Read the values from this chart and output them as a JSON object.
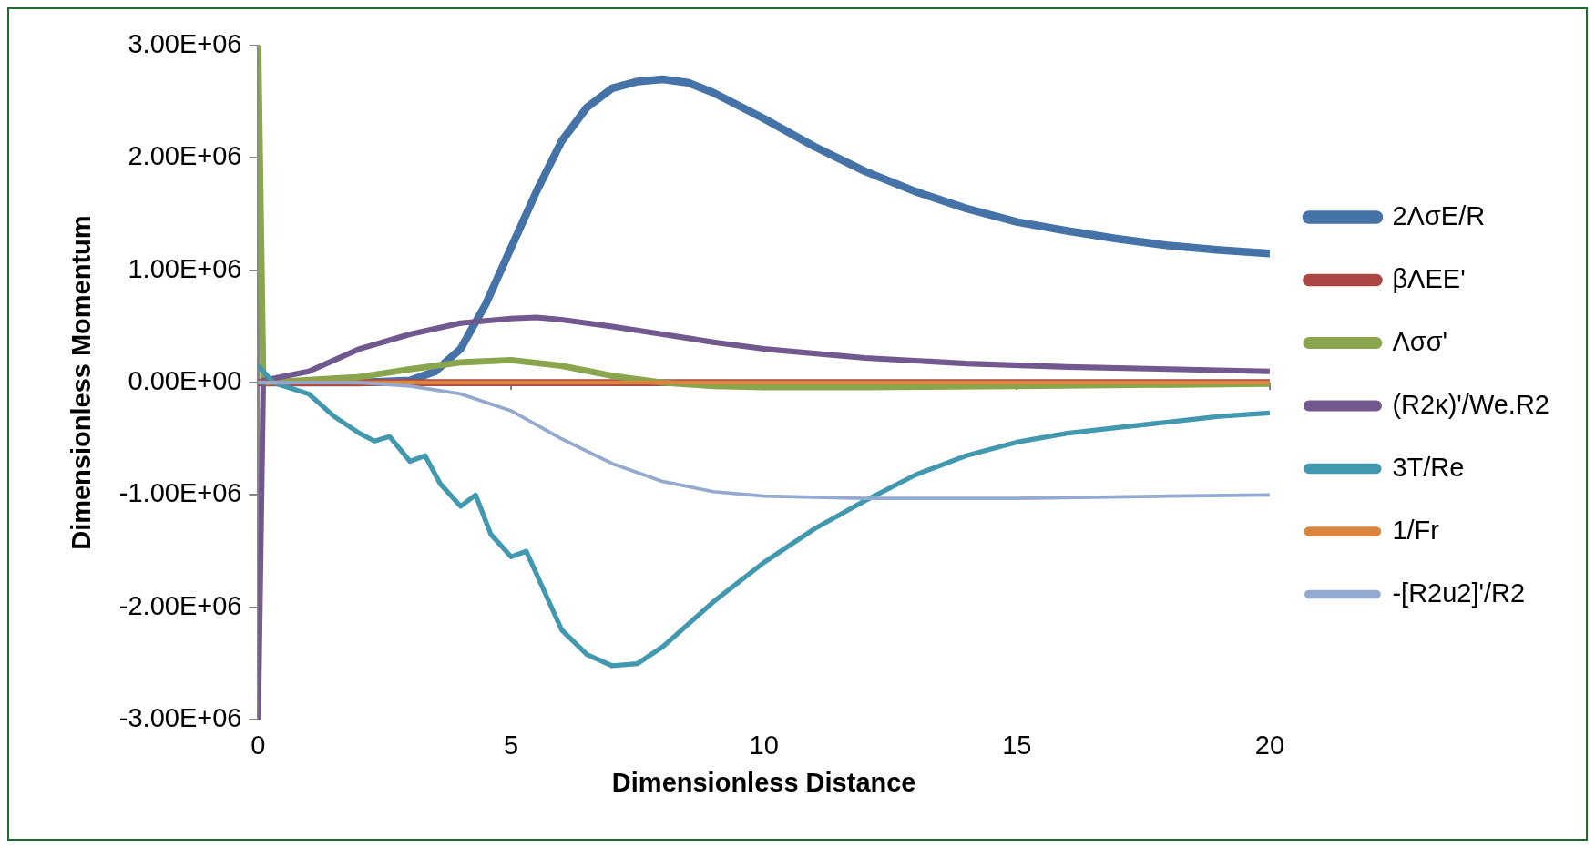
{
  "chart_data": {
    "type": "line",
    "xlabel": "Dimensionless Distance",
    "ylabel": "Dimensionless Momentum",
    "xlim": [
      0,
      20
    ],
    "xticks": [
      0,
      5,
      10,
      15,
      20
    ],
    "ylim": [
      -3000000,
      3000000
    ],
    "yticks": [
      {
        "value": -3000000,
        "label": "-3.00E+06"
      },
      {
        "value": -2000000,
        "label": "-2.00E+06"
      },
      {
        "value": -1000000,
        "label": "-1.00E+06"
      },
      {
        "value": 0,
        "label": "0.00E+00"
      },
      {
        "value": 1000000,
        "label": "1.00E+06"
      },
      {
        "value": 2000000,
        "label": "2.00E+06"
      },
      {
        "value": 3000000,
        "label": "3.00E+06"
      }
    ],
    "grid": false,
    "legend": "right",
    "marker": "none",
    "line_style": "solid",
    "series": [
      {
        "name": "2ΛσE/R",
        "color": "#4572a7",
        "x": [
          0,
          2,
          3,
          3.5,
          4,
          4.5,
          5,
          5.5,
          6,
          6.5,
          7,
          7.5,
          8,
          8.5,
          9,
          10,
          11,
          12,
          13,
          14,
          15,
          16,
          17,
          18,
          19,
          20
        ],
        "values": [
          0,
          0,
          20000,
          100000,
          300000,
          700000,
          1200000,
          1700000,
          2150000,
          2450000,
          2620000,
          2680000,
          2700000,
          2670000,
          2580000,
          2350000,
          2100000,
          1880000,
          1700000,
          1550000,
          1430000,
          1350000,
          1280000,
          1220000,
          1180000,
          1150000
        ]
      },
      {
        "name": "βΛEE'",
        "color": "#aa4643",
        "x": [
          0,
          20
        ],
        "values": [
          0,
          0
        ]
      },
      {
        "name": "Λσσ'",
        "color": "#89a54e",
        "x": [
          0,
          0.1,
          2,
          3,
          4,
          5,
          6,
          7,
          8,
          9,
          10,
          12,
          15,
          20
        ],
        "values": [
          3000000,
          0,
          50000,
          120000,
          180000,
          200000,
          150000,
          60000,
          0,
          -30000,
          -40000,
          -40000,
          -30000,
          -10000
        ]
      },
      {
        "name": "(R2κ)'/We.R2",
        "color": "#71588f",
        "x": [
          0,
          0.1,
          1,
          2,
          3,
          4,
          5,
          5.5,
          6,
          7,
          8,
          9,
          10,
          12,
          14,
          16,
          18,
          20
        ],
        "values": [
          -3000000,
          20000,
          100000,
          300000,
          430000,
          530000,
          570000,
          580000,
          560000,
          500000,
          430000,
          360000,
          300000,
          220000,
          170000,
          140000,
          120000,
          100000
        ]
      },
      {
        "name": "3T/Re",
        "color": "#4198af",
        "x": [
          0,
          0.3,
          1,
          1.5,
          2,
          2.3,
          2.6,
          3,
          3.3,
          3.6,
          4,
          4.3,
          4.6,
          5,
          5.3,
          5.6,
          6,
          6.5,
          7,
          7.5,
          8,
          9,
          10,
          11,
          12,
          13,
          14,
          15,
          16,
          17,
          18,
          19,
          20
        ],
        "values": [
          150000,
          0,
          -100000,
          -300000,
          -450000,
          -520000,
          -480000,
          -700000,
          -650000,
          -900000,
          -1100000,
          -1000000,
          -1350000,
          -1550000,
          -1500000,
          -1800000,
          -2200000,
          -2420000,
          -2520000,
          -2500000,
          -2350000,
          -1950000,
          -1600000,
          -1300000,
          -1050000,
          -820000,
          -650000,
          -530000,
          -450000,
          -400000,
          -350000,
          -300000,
          -270000
        ]
      },
      {
        "name": "1/Fr",
        "color": "#db843d",
        "x": [
          0,
          20
        ],
        "values": [
          0,
          0
        ]
      },
      {
        "name": "-[R2u2]'/R2",
        "color": "#93a9cf",
        "x": [
          0,
          2,
          3,
          4,
          5,
          6,
          7,
          8,
          9,
          10,
          12,
          15,
          18,
          20
        ],
        "values": [
          0,
          0,
          -30000,
          -100000,
          -250000,
          -500000,
          -720000,
          -880000,
          -970000,
          -1010000,
          -1030000,
          -1030000,
          -1010000,
          -1000000
        ]
      }
    ]
  }
}
